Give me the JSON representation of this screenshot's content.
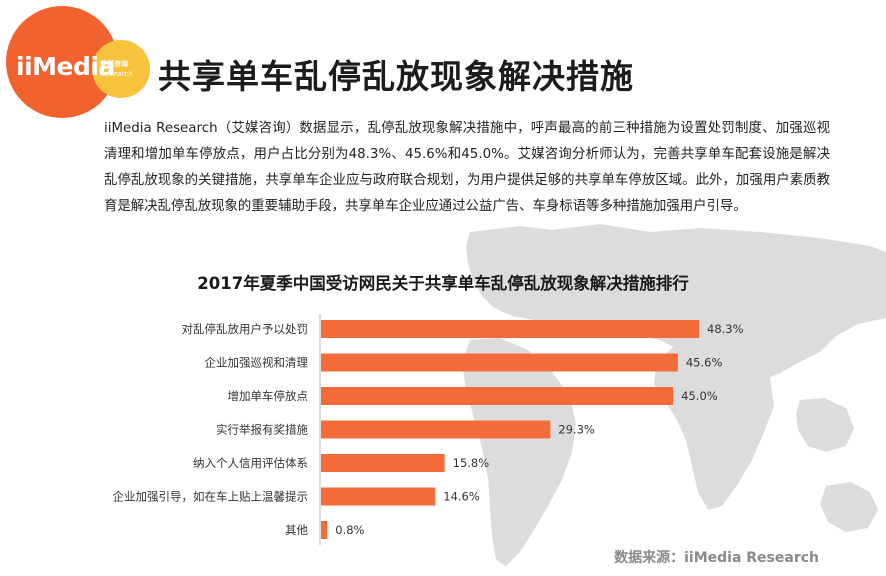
{
  "header": {
    "logo_wordmark": "iiMedia",
    "logo_cn": "艾媒咨询",
    "logo_en": "Research",
    "title": "共享单车乱停乱放现象解决措施"
  },
  "intro": {
    "text": "iiMedia Research（艾媒咨询）数据显示，乱停乱放现象解决措施中，呼声最高的前三种措施为设置处罚制度、加强巡视清理和增加单车停放点，用户占比分别为48.3%、45.6%和45.0%。艾媒咨询分析师认为，完善共享单车配套设施是解决乱停乱放现象的关键措施，共享单车企业应与政府联合规划，为用户提供足够的共享单车停放区域。此外，加强用户素质教育是解决乱停乱放现象的重要辅助手段，共享单车企业应通过公益广告、车身标语等多种措施加强用户引导。"
  },
  "colors": {
    "bar": "#f46b3a",
    "logo_primary": "#f2622e",
    "logo_secondary": "#f7c33d",
    "map": "#dcdcdc"
  },
  "chart_data": {
    "type": "bar",
    "orientation": "horizontal",
    "title": "2017年夏季中国受访网民关于共享单车乱停乱放现象解决措施排行",
    "categories": [
      "对乱停乱放用户予以处罚",
      "企业加强巡视和清理",
      "增加单车停放点",
      "实行举报有奖措施",
      "纳入个人信用评估体系",
      "企业加强引导，如在车上贴上温馨提示",
      "其他"
    ],
    "values": [
      48.3,
      45.6,
      45.0,
      29.3,
      15.8,
      14.6,
      0.8
    ],
    "value_labels": [
      "48.3%",
      "45.6%",
      "45.0%",
      "29.3%",
      "15.8%",
      "14.6%",
      "0.8%"
    ],
    "unit": "%",
    "xlabel": "",
    "ylabel": "",
    "xlim": [
      0,
      50
    ],
    "grid": false,
    "legend": "none"
  },
  "footer": {
    "source": "数据来源：iiMedia Research"
  }
}
